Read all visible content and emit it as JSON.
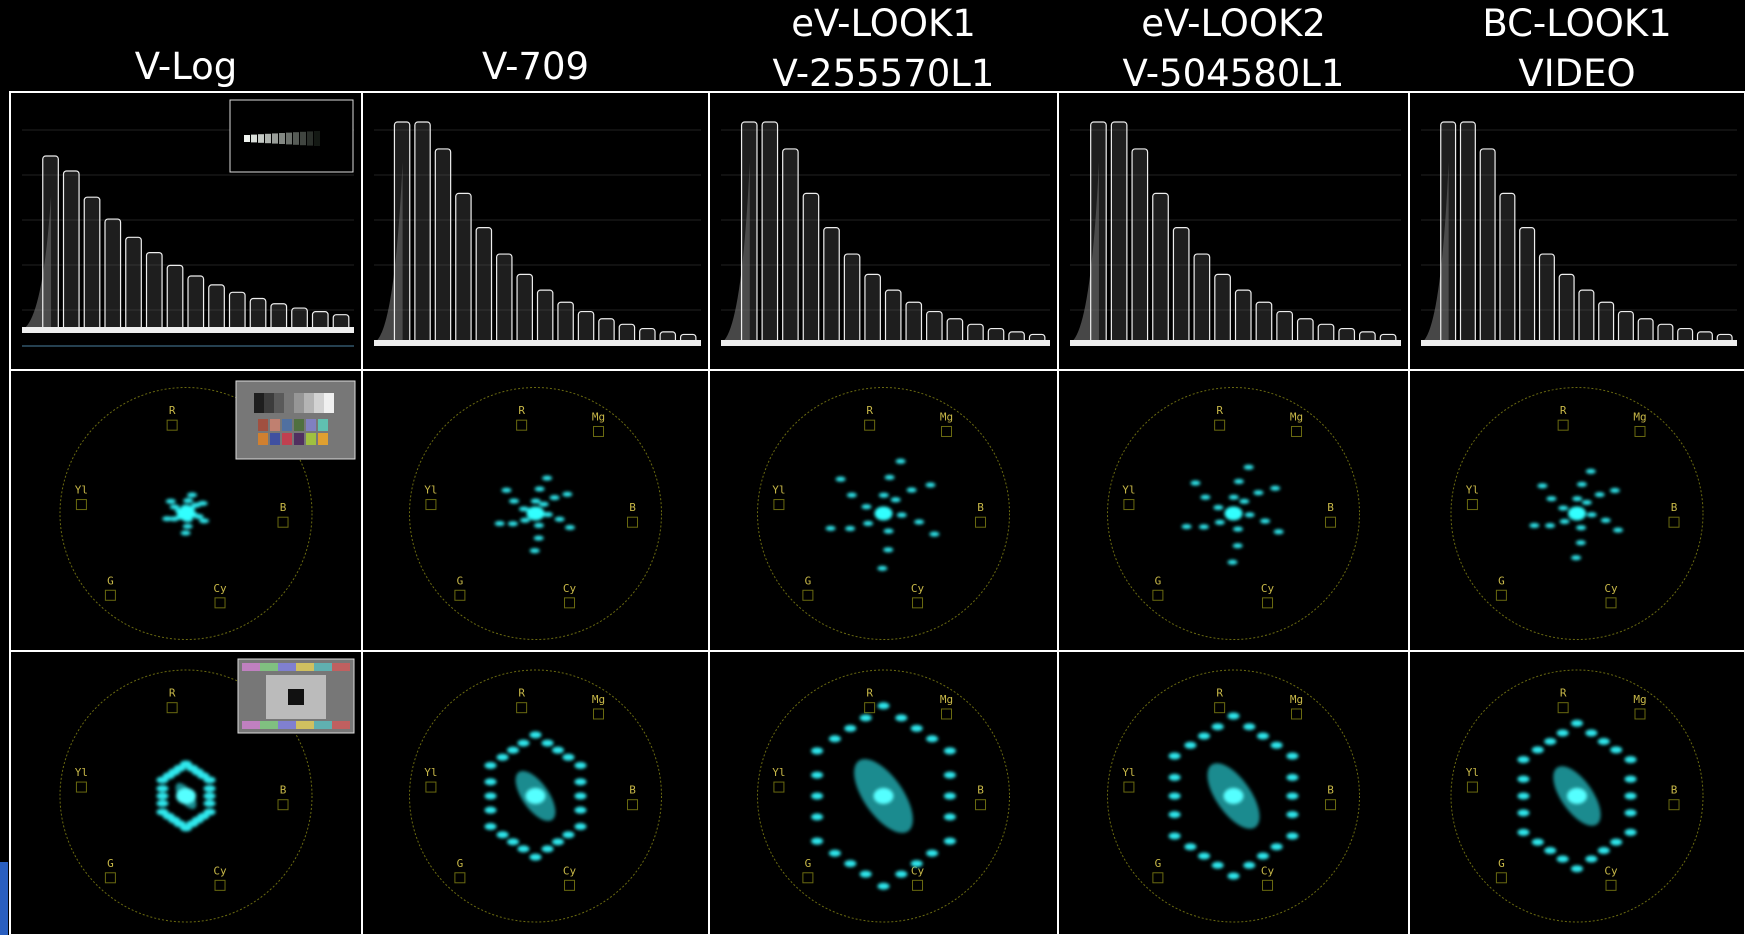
{
  "columns": [
    {
      "lines": [
        "V-Log"
      ]
    },
    {
      "lines": [
        "V-709"
      ]
    },
    {
      "lines": [
        "eV-LOOK1",
        "V-255570L1"
      ]
    },
    {
      "lines": [
        "eV-LOOK2",
        "V-504580L1"
      ]
    },
    {
      "lines": [
        "BC-LOOK1",
        "VIDEO"
      ]
    }
  ],
  "scope_labels": [
    "R",
    "Mg",
    "B",
    "Cy",
    "G",
    "Yl"
  ]
}
